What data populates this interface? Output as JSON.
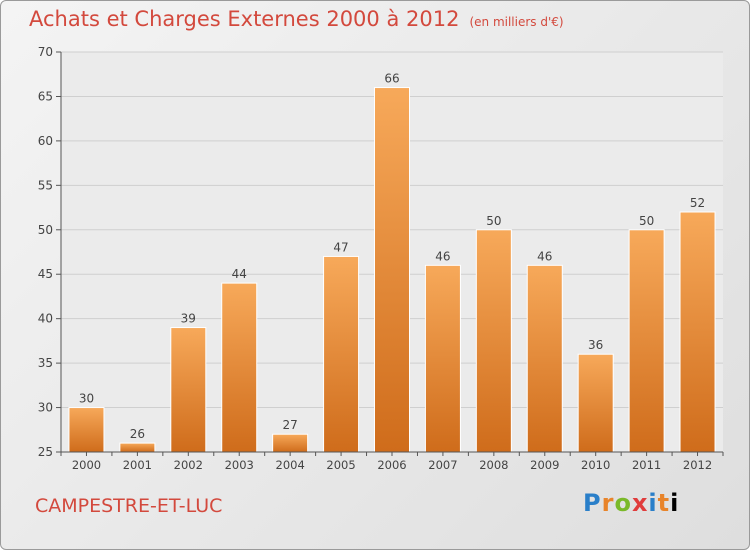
{
  "header": {
    "title": "Achats et Charges Externes 2000 à 2012",
    "subtitle": "(en milliers d'€)"
  },
  "footer": {
    "town": "CAMPESTRE-ET-LUC",
    "logo": [
      "P",
      "r",
      "o",
      "x",
      "i",
      "t",
      "i"
    ]
  },
  "colors": {
    "bar_top": "#f7a95a",
    "bar_bottom": "#cf6c1b",
    "title": "#d3493d"
  },
  "chart_data": {
    "type": "bar",
    "title": "Achats et Charges Externes 2000 à 2012",
    "subtitle": "(en milliers d'€)",
    "categories": [
      "2000",
      "2001",
      "2002",
      "2003",
      "2004",
      "2005",
      "2006",
      "2007",
      "2008",
      "2009",
      "2010",
      "2011",
      "2012"
    ],
    "values": [
      30,
      26,
      39,
      44,
      27,
      47,
      66,
      46,
      50,
      46,
      36,
      50,
      52
    ],
    "ylim": [
      25,
      70
    ],
    "yticks": [
      25,
      30,
      35,
      40,
      45,
      50,
      55,
      60,
      65,
      70
    ],
    "grid": true,
    "legend": "none"
  }
}
